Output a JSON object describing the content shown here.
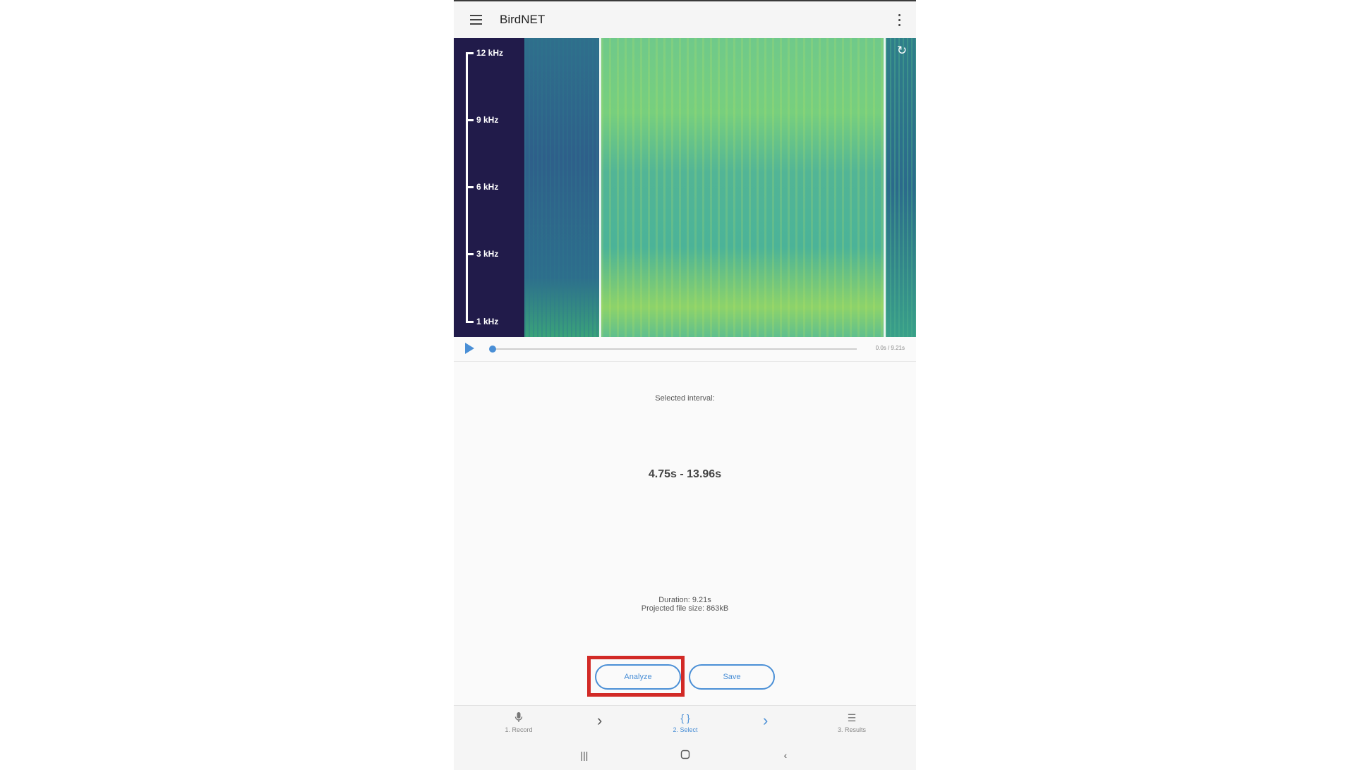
{
  "appbar": {
    "title": "BirdNET",
    "menu_icon": "hamburger-menu-icon",
    "overflow_icon": "more-vertical-icon"
  },
  "spectrogram": {
    "freq_labels": [
      "12 kHz",
      "9 kHz",
      "6 kHz",
      "3 kHz",
      "1 kHz"
    ],
    "refresh_icon": "refresh-icon"
  },
  "player": {
    "play_icon": "play-icon",
    "time": "0.0s / 9.21s",
    "progress": 0
  },
  "selection": {
    "label": "Selected interval:",
    "interval": "4.75s - 13.96s",
    "duration": "Duration: 9.21s",
    "filesize": "Projected file size: 863kB"
  },
  "actions": {
    "analyze_label": "Analyze",
    "save_label": "Save"
  },
  "bottom_nav": {
    "items": [
      {
        "label": "1. Record",
        "icon": "microphone-icon",
        "active": false
      },
      {
        "label": "2. Select",
        "icon": "braces-icon",
        "active": true
      },
      {
        "label": "3. Results",
        "icon": "list-icon",
        "active": false
      }
    ],
    "arrow_icon": "chevron-right-icon"
  },
  "system_nav": {
    "recents_icon": "recents-icon",
    "home_icon": "home-icon",
    "back_icon": "back-icon"
  },
  "colors": {
    "accent": "#4a8fd6",
    "highlight": "#d22a26",
    "spectrogram_bg": "#211b4a"
  }
}
